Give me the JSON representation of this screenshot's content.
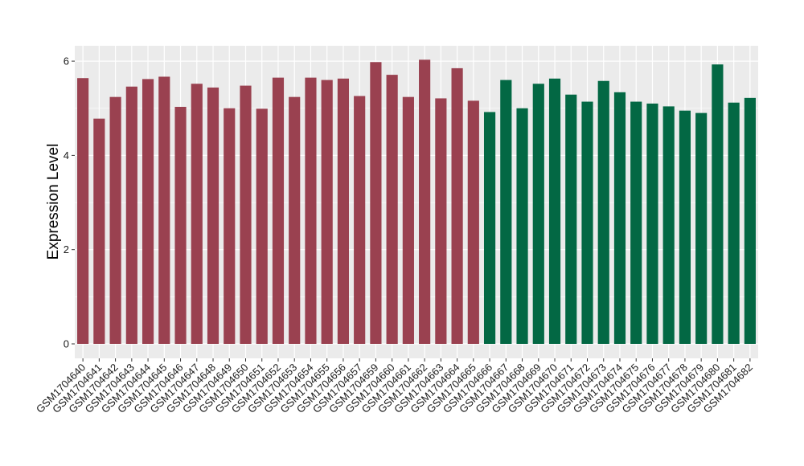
{
  "chart_data": {
    "type": "bar",
    "ylabel": "Expression Level",
    "xlabel": "",
    "ylim": [
      0,
      6.3
    ],
    "yticks": [
      0,
      2,
      4,
      6
    ],
    "grid": true,
    "panel_background": "#ebebeb",
    "grid_color": "#ffffff",
    "categories": [
      "GSM1704640",
      "GSM1704641",
      "GSM1704642",
      "GSM1704643",
      "GSM1704644",
      "GSM1704645",
      "GSM1704646",
      "GSM1704647",
      "GSM1704648",
      "GSM1704649",
      "GSM1704650",
      "GSM1704651",
      "GSM1704652",
      "GSM1704653",
      "GSM1704654",
      "GSM1704655",
      "GSM1704656",
      "GSM1704657",
      "GSM1704659",
      "GSM1704660",
      "GSM1704661",
      "GSM1704662",
      "GSM1704663",
      "GSM1704664",
      "GSM1704665",
      "GSM1704666",
      "GSM1704667",
      "GSM1704668",
      "GSM1704669",
      "GSM1704670",
      "GSM1704671",
      "GSM1704672",
      "GSM1704673",
      "GSM1704674",
      "GSM1704675",
      "GSM1704676",
      "GSM1704677",
      "GSM1704678",
      "GSM1704679",
      "GSM1704680",
      "GSM1704681",
      "GSM1704682"
    ],
    "values": [
      5.64,
      4.78,
      5.24,
      5.46,
      5.62,
      5.67,
      5.03,
      5.52,
      5.44,
      5.0,
      5.48,
      4.99,
      5.65,
      5.24,
      5.65,
      5.6,
      5.63,
      5.26,
      5.98,
      5.71,
      5.24,
      6.03,
      5.21,
      5.85,
      5.16,
      4.92,
      5.6,
      5.0,
      5.52,
      5.63,
      5.29,
      5.14,
      5.58,
      5.34,
      5.14,
      5.1,
      5.04,
      4.95,
      4.9,
      5.93,
      5.12,
      5.22
    ],
    "group_colors": [
      "#9a4150",
      "#036844"
    ],
    "group_sizes": [
      25,
      17
    ]
  }
}
